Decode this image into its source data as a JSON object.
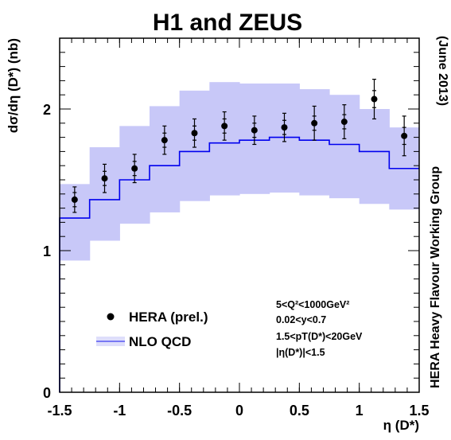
{
  "chart_data": {
    "type": "scatter",
    "title": "H1 and ZEUS",
    "xlabel": "η (D*)",
    "ylabel": "dσ/dη (D*) (nb)",
    "xlim": [
      -1.5,
      1.5
    ],
    "ylim": [
      0,
      2.5
    ],
    "xticks": [
      "-1.5",
      "-1",
      "-0.5",
      "0",
      "0.5",
      "1",
      "1.5"
    ],
    "yticks": [
      "0",
      "1",
      "2"
    ],
    "grid": false,
    "legend_position": "bottom-left",
    "series": [
      {
        "name": "HERA (prel.)",
        "kind": "points",
        "color": "#000000",
        "x": [
          -1.375,
          -1.125,
          -0.875,
          -0.625,
          -0.375,
          -0.125,
          0.125,
          0.375,
          0.625,
          0.875,
          1.125,
          1.375
        ],
        "y": [
          1.36,
          1.51,
          1.58,
          1.78,
          1.83,
          1.88,
          1.85,
          1.87,
          1.9,
          1.91,
          2.07,
          1.81
        ],
        "err_inner": [
          0.05,
          0.05,
          0.05,
          0.05,
          0.05,
          0.05,
          0.05,
          0.05,
          0.05,
          0.05,
          0.06,
          0.06
        ],
        "err_outer": [
          0.09,
          0.1,
          0.1,
          0.1,
          0.1,
          0.1,
          0.1,
          0.1,
          0.12,
          0.12,
          0.14,
          0.14
        ]
      },
      {
        "name": "NLO QCD",
        "kind": "step",
        "color": "#0000ee",
        "band_color": "#c8c8f8",
        "bin_edges": [
          -1.5,
          -1.25,
          -1.0,
          -0.75,
          -0.5,
          -0.25,
          0.0,
          0.25,
          0.5,
          0.75,
          1.0,
          1.25,
          1.5
        ],
        "values": [
          1.23,
          1.36,
          1.5,
          1.6,
          1.7,
          1.76,
          1.78,
          1.8,
          1.78,
          1.75,
          1.7,
          1.58
        ],
        "band_low": [
          0.93,
          1.07,
          1.19,
          1.27,
          1.35,
          1.39,
          1.4,
          1.41,
          1.39,
          1.37,
          1.33,
          1.29
        ],
        "band_high": [
          1.47,
          1.73,
          1.88,
          2.02,
          2.13,
          2.19,
          2.18,
          2.18,
          2.14,
          2.1,
          2.0,
          1.87
        ]
      }
    ],
    "annotations": {
      "cuts": [
        "5<Q²<1000GeV²",
        "0.02<y<0.7",
        "1.5<pT(D*)<20GeV",
        "|η(D*)|<1.5"
      ],
      "side_date": "(June 2013)",
      "side_group": "HERA Heavy Flavour Working Group"
    }
  }
}
